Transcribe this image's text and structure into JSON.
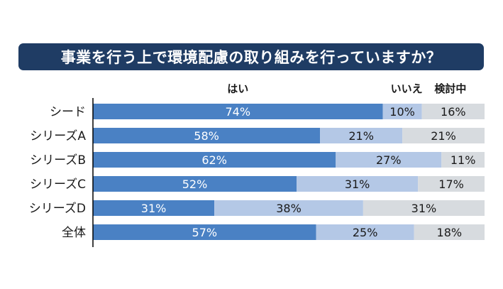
{
  "title": "事業を行う上で環境配慮の取り組みを行っていますか？",
  "colors": {
    "title_bg": "#1f3c64",
    "yes": "#4a81c4",
    "no": "#b4c8e6",
    "considering": "#d7dbdf",
    "axis": "#000000"
  },
  "chart_data": {
    "type": "bar",
    "orientation": "horizontal",
    "stacked": true,
    "percent": true,
    "title": "事業を行う上で環境配慮の取り組みを行っていますか？",
    "categories": [
      "シード",
      "シリーズA",
      "シリーズB",
      "シリーズC",
      "シリーズD",
      "全体"
    ],
    "series": [
      {
        "name": "はい",
        "values": [
          74,
          58,
          62,
          52,
          31,
          57
        ]
      },
      {
        "name": "いいえ",
        "values": [
          10,
          21,
          27,
          31,
          38,
          25
        ]
      },
      {
        "name": "検討中",
        "values": [
          16,
          21,
          11,
          17,
          31,
          18
        ]
      }
    ],
    "data_labels": [
      [
        "74%",
        "58%",
        "62%",
        "52%",
        "31%",
        "57%"
      ],
      [
        "10%",
        "21%",
        "27%",
        "31%",
        "38%",
        "25%"
      ],
      [
        "16%",
        "21%",
        "11%",
        "17%",
        "31%",
        "18%"
      ]
    ],
    "xlim": [
      0,
      100
    ],
    "grid": false,
    "legend_position": "top"
  }
}
